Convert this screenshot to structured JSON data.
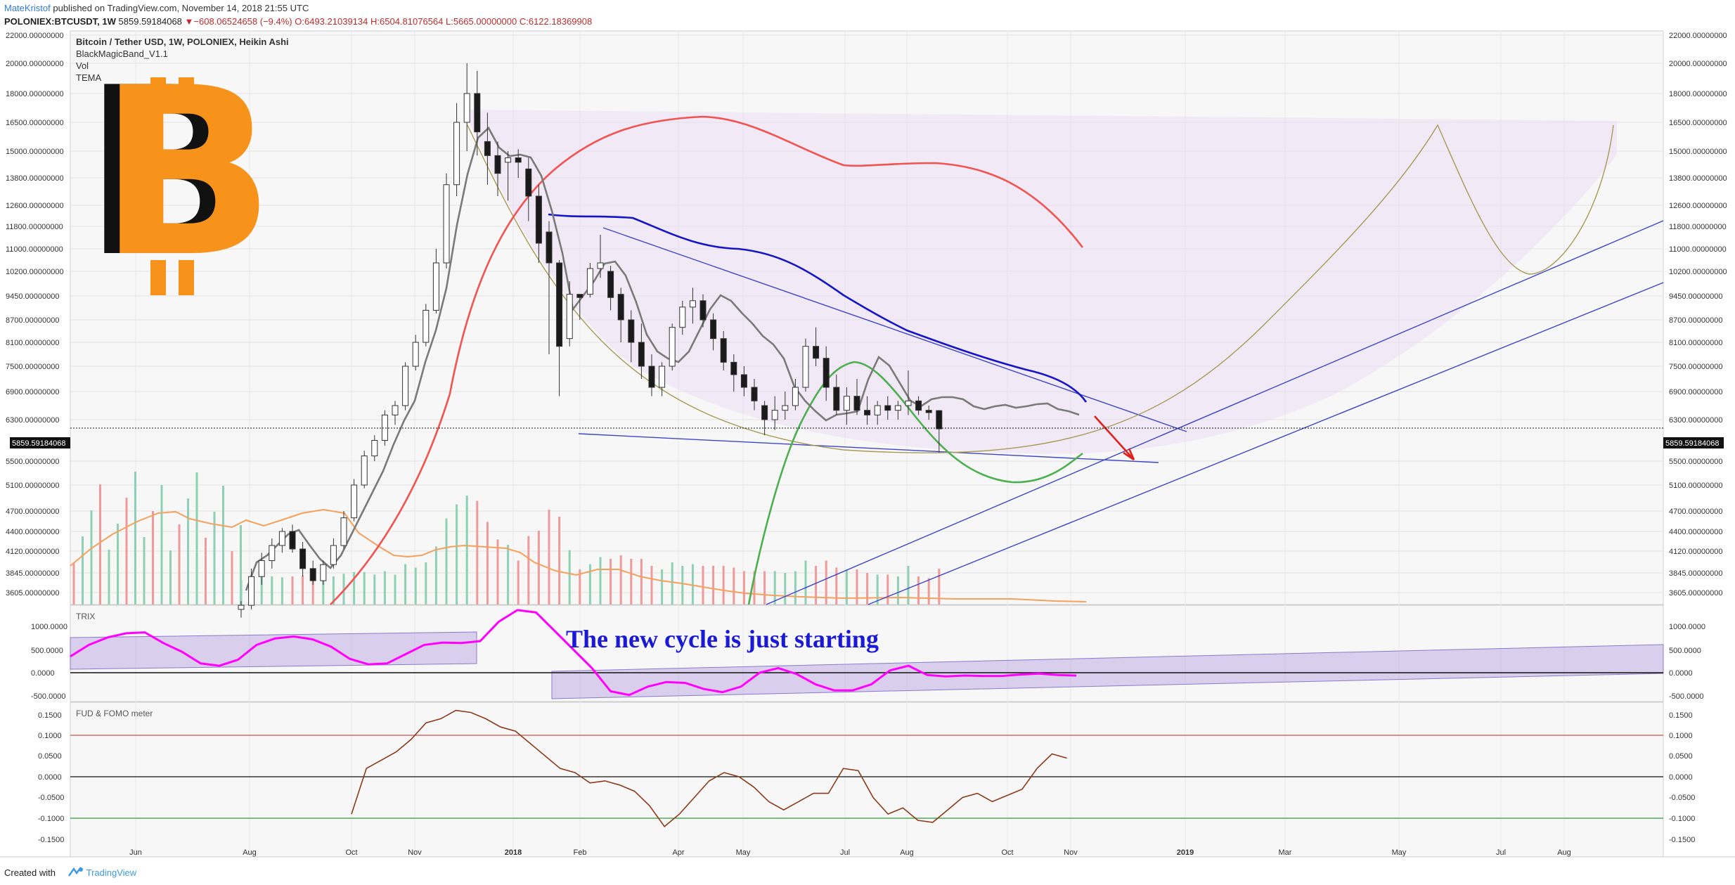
{
  "header": {
    "author": "MateKristof",
    "published": " published on TradingView.com, November 14, 2018 21:55 UTC"
  },
  "ticker": {
    "symbol": "POLONIEX:BTCUSDT, 1W",
    "last": "5859.59184068",
    "change": "−608.06524658 (−9.4%)",
    "change_arrow": "▼",
    "o": "O:6493.21039134",
    "h": "H:6504.81076564",
    "l": "L:5665.00000000",
    "c": "C:6122.18369908"
  },
  "footer": {
    "created": "Created with",
    "brand": "TradingView"
  },
  "legend": {
    "title": "Bitcoin / Tether USD, 1W, POLONIEX, Heikin Ashi",
    "items": [
      "BlackMagicBand_V1.1",
      "Vol",
      "TEMA"
    ]
  },
  "annotation": "The new cycle is just starting",
  "price_tag": "5859.59184068",
  "trix_label": "TRIX",
  "fud_label": "FUD & FOMO meter",
  "colors": {
    "bitcoin_logo": "#f7931a",
    "candle_up": "#ffffff",
    "candle_down": "#1a1a1a",
    "red_band": "#f05350",
    "blue_band": "#1515c8",
    "green_band": "#4caf50",
    "grey_tema": "#7a7a7a",
    "trix": "#ff00ff",
    "fud": "#8b3a1a",
    "annotation": "#1a1ad6",
    "vol_orange": "#f4a15d"
  },
  "chart_data": [
    {
      "type": "candlestick",
      "title": "Bitcoin / Tether USD, 1W, POLONIEX, Heikin Ashi",
      "x_ticks": [
        "Jun",
        "Aug",
        "Oct",
        "Nov",
        "2018",
        "Feb",
        "Apr",
        "May",
        "Jul",
        "Aug",
        "Oct",
        "Nov",
        "2019",
        "Mar",
        "May",
        "Jul",
        "Aug"
      ],
      "y_ticks": [
        "22000.00000000",
        "20000.00000000",
        "18000.00000000",
        "16500.00000000",
        "15000.00000000",
        "13800.00000000",
        "12600.00000000",
        "11800.00000000",
        "11000.00000000",
        "10200.00000000",
        "9450.00000000",
        "8700.00000000",
        "8100.00000000",
        "7500.00000000",
        "6900.00000000",
        "6300.00000000",
        "5500.00000000",
        "5100.00000000",
        "4700.00000000",
        "4400.00000000",
        "4120.00000000",
        "3845.00000000",
        "3605.00000000"
      ],
      "last_price": 5859.59184068,
      "candles_ohlc": [
        [
          3400,
          3500,
          3300,
          3450
        ],
        [
          3450,
          3900,
          3400,
          3800
        ],
        [
          3800,
          4100,
          3700,
          4000
        ],
        [
          4000,
          4300,
          3900,
          4200
        ],
        [
          4200,
          4450,
          4100,
          4400
        ],
        [
          4400,
          4500,
          4100,
          4150
        ],
        [
          4150,
          4250,
          3800,
          3900
        ],
        [
          3900,
          4000,
          3700,
          3750
        ],
        [
          3750,
          4000,
          3700,
          3950
        ],
        [
          3950,
          4300,
          3900,
          4200
        ],
        [
          4200,
          4700,
          4150,
          4600
        ],
        [
          4600,
          5200,
          4550,
          5100
        ],
        [
          5100,
          5700,
          5050,
          5600
        ],
        [
          5600,
          6000,
          5500,
          5900
        ],
        [
          5900,
          6500,
          5800,
          6400
        ],
        [
          6400,
          6700,
          6200,
          6600
        ],
        [
          6600,
          7600,
          6500,
          7500
        ],
        [
          7500,
          8300,
          7400,
          8100
        ],
        [
          8100,
          9200,
          8000,
          9000
        ],
        [
          9000,
          11000,
          8900,
          10500
        ],
        [
          10500,
          14000,
          10300,
          13500
        ],
        [
          13500,
          17500,
          13000,
          16500
        ],
        [
          16500,
          20000,
          15000,
          18000
        ],
        [
          18000,
          19500,
          14800,
          16000
        ],
        [
          15500,
          17000,
          13500,
          14800
        ],
        [
          14800,
          15500,
          13000,
          14000
        ],
        [
          14500,
          15000,
          12800,
          14700
        ],
        [
          14700,
          15100,
          13800,
          14500
        ],
        [
          14200,
          14700,
          12000,
          13000
        ],
        [
          13000,
          13500,
          10500,
          11200
        ],
        [
          11600,
          12000,
          7800,
          10500
        ],
        [
          10500,
          10600,
          6800,
          8000
        ],
        [
          8200,
          9900,
          8000,
          9500
        ],
        [
          9500,
          9500,
          8700,
          9400
        ],
        [
          9500,
          10500,
          9400,
          10300
        ],
        [
          10300,
          11500,
          10000,
          10500
        ],
        [
          10200,
          10400,
          9000,
          9400
        ],
        [
          9500,
          9700,
          8100,
          8700
        ],
        [
          8700,
          9000,
          7600,
          8100
        ],
        [
          8100,
          8600,
          7200,
          7500
        ],
        [
          7500,
          7800,
          6800,
          7000
        ],
        [
          7000,
          7600,
          6800,
          7500
        ],
        [
          7500,
          8600,
          7400,
          8500
        ],
        [
          8500,
          9300,
          8300,
          9100
        ],
        [
          9100,
          9700,
          8600,
          9300
        ],
        [
          9300,
          9500,
          8500,
          8700
        ],
        [
          8700,
          8900,
          7900,
          8200
        ],
        [
          8200,
          8400,
          7400,
          7600
        ],
        [
          7600,
          7800,
          6900,
          7300
        ],
        [
          7300,
          7500,
          6800,
          7000
        ],
        [
          7000,
          7200,
          6500,
          6700
        ],
        [
          6600,
          6700,
          6000,
          6300
        ],
        [
          6300,
          6800,
          6100,
          6500
        ],
        [
          6500,
          6900,
          6300,
          6600
        ],
        [
          6600,
          7200,
          6500,
          7000
        ],
        [
          7000,
          8200,
          6900,
          8000
        ],
        [
          8000,
          8500,
          7500,
          7700
        ],
        [
          7700,
          8000,
          6700,
          7000
        ],
        [
          7000,
          7300,
          6400,
          6500
        ],
        [
          6500,
          7000,
          6200,
          6800
        ],
        [
          6800,
          7200,
          6400,
          6500
        ],
        [
          6500,
          6800,
          6200,
          6400
        ],
        [
          6400,
          6700,
          6200,
          6600
        ],
        [
          6600,
          6800,
          6300,
          6500
        ],
        [
          6500,
          6700,
          6300,
          6600
        ],
        [
          6600,
          7400,
          6400,
          6700
        ],
        [
          6700,
          6800,
          6400,
          6500
        ],
        [
          6500,
          6600,
          6300,
          6450
        ],
        [
          6493.21,
          6504.81,
          5665,
          6122.18
        ]
      ]
    },
    {
      "type": "line",
      "title": "TRIX",
      "y_ticks": [
        "1000.0000",
        "500.0000",
        "0.0000",
        "-500.0000"
      ],
      "values": [
        350,
        600,
        760,
        850,
        870,
        640,
        450,
        200,
        150,
        280,
        600,
        740,
        780,
        720,
        560,
        300,
        180,
        200,
        400,
        600,
        650,
        640,
        680,
        1100,
        1350,
        1300,
        900,
        500,
        100,
        -400,
        -480,
        -300,
        -200,
        -220,
        -350,
        -420,
        -300,
        0,
        100,
        -30,
        -250,
        -380,
        -380,
        -250,
        50,
        150,
        -50,
        -80,
        -60,
        -70,
        -70,
        -40,
        -20,
        -50,
        -60
      ]
    },
    {
      "type": "line",
      "title": "FUD & FOMO meter",
      "y_ticks": [
        "0.1500",
        "0.1000",
        "0.0500",
        "0.0000",
        "-0.0500",
        "-0.1000",
        "-0.1500"
      ],
      "values": [
        -0.09,
        0.02,
        0.04,
        0.06,
        0.09,
        0.13,
        0.14,
        0.16,
        0.155,
        0.14,
        0.12,
        0.11,
        0.08,
        0.05,
        0.02,
        0.01,
        -0.015,
        -0.01,
        -0.02,
        -0.035,
        -0.07,
        -0.12,
        -0.09,
        -0.05,
        -0.01,
        0.01,
        0.0,
        -0.025,
        -0.06,
        -0.08,
        -0.06,
        -0.04,
        -0.04,
        0.02,
        0.015,
        -0.05,
        -0.09,
        -0.075,
        -0.105,
        -0.11,
        -0.08,
        -0.05,
        -0.04,
        -0.06,
        -0.045,
        -0.03,
        0.02,
        0.055,
        0.045
      ]
    }
  ]
}
